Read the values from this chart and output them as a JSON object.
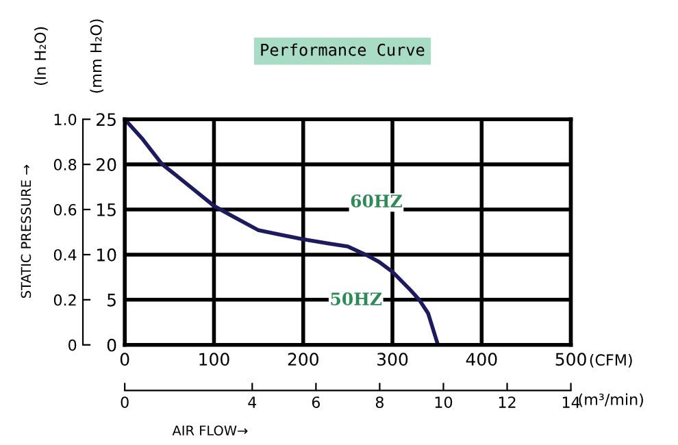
{
  "chart_data": {
    "type": "line",
    "title": "Performance Curve",
    "x": [
      0,
      20,
      42,
      60,
      100,
      120,
      150,
      175,
      200,
      230,
      250,
      270,
      285,
      300,
      320,
      330,
      340,
      351
    ],
    "series": [
      {
        "color": "#1e1a5e",
        "values": [
          25,
          22.8,
          20,
          18.6,
          15.4,
          14.3,
          12.7,
          12.2,
          11.7,
          11.2,
          10.9,
          10,
          9.2,
          8.1,
          6.1,
          5,
          3.5,
          0
        ]
      }
    ],
    "xlim": [
      0,
      500
    ],
    "xticks": [
      0,
      100,
      200,
      300,
      400,
      500
    ],
    "xlabel": "(CFM)",
    "ylim": [
      0,
      25
    ],
    "yticks": [
      0,
      5,
      10,
      15,
      20,
      25
    ],
    "ylabel": "(mm H₂O)",
    "y2lim": [
      0,
      1.0
    ],
    "y2ticks": [
      0,
      {
        "value": 0.2,
        "label": "0.2"
      },
      {
        "value": 0.4,
        "label": "0.4"
      },
      {
        "value": 0.6,
        "label": "0.6"
      },
      {
        "value": 0.8,
        "label": "0.8"
      },
      {
        "value": 1.0,
        "label": "1.0"
      }
    ],
    "y2label": "(In H₂O)",
    "x2lim": [
      0,
      14
    ],
    "x2ticks": [
      0,
      4,
      6,
      8,
      10,
      12,
      14
    ],
    "x2label": "(m³/min)",
    "grid": true,
    "marker": "none",
    "line_style": "solid",
    "annotations": [
      "60HZ",
      "50HZ",
      "STATIC PRESSURE →",
      "AIR FLOW→"
    ]
  }
}
